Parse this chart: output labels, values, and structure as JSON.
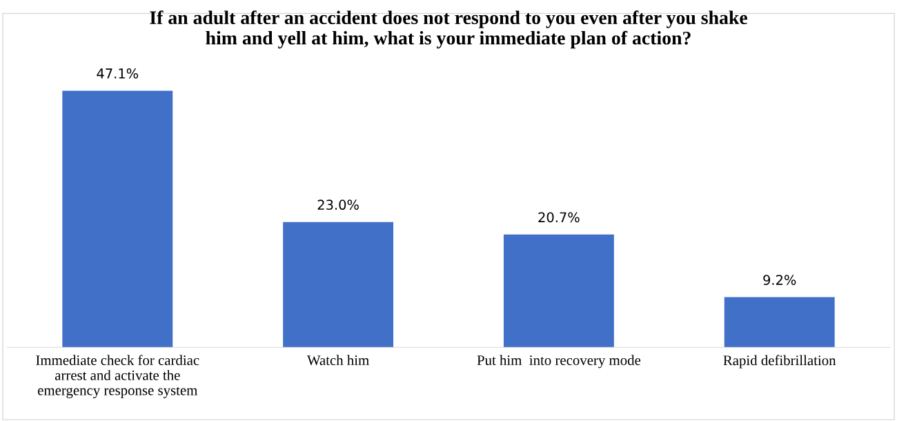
{
  "chart_data": {
    "type": "bar",
    "title": "If an adult after an accident does not respond to you even after you shake\nhim and yell at him, what is your immediate plan of action?",
    "categories": [
      "Immediate check for cardiac\narrest and activate the\nemergency response system",
      "Watch him",
      "Put him  into recovery mode",
      "Rapid defibrillation"
    ],
    "values": [
      47.1,
      23.0,
      20.7,
      9.2
    ],
    "value_labels": [
      "47.1%",
      "23.0%",
      "20.7%",
      "9.2%"
    ],
    "color": "#4070c8",
    "grid": false,
    "legend": false,
    "tick_labels": "x"
  }
}
